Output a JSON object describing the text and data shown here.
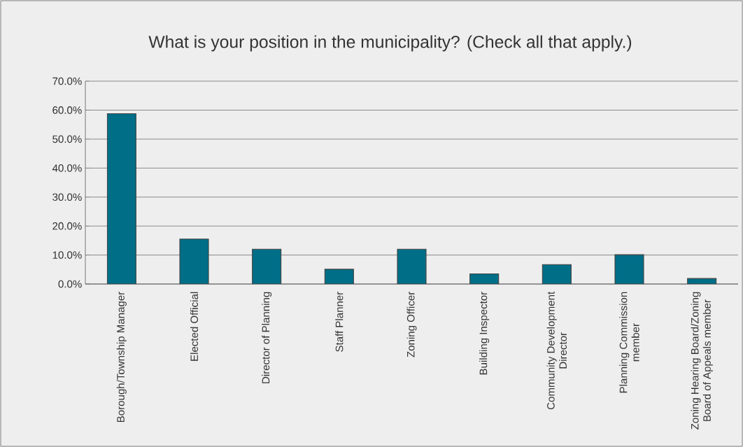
{
  "chart_data": {
    "type": "bar",
    "title": "What is your position in the municipality? (Check all that apply.)",
    "categories": [
      "Borough/Township Manager",
      "Elected Official",
      "Director of Planning",
      "Staff Planner",
      "Zoning Officer",
      "Building Inspector",
      "Community Development Director",
      "Planning Commission member",
      "Zoning Hearing Board/Zoning Board of Appeals member"
    ],
    "values": [
      58.8,
      15.5,
      12.0,
      5.1,
      12.0,
      3.5,
      6.7,
      10.1,
      1.9
    ],
    "color": "#006e87",
    "ylim": [
      0,
      70
    ],
    "yticks": [
      {
        "value": 0,
        "label": "0.0%"
      },
      {
        "value": 10,
        "label": "10.0%"
      },
      {
        "value": 20,
        "label": "20.0%"
      },
      {
        "value": 30,
        "label": "30.0%"
      },
      {
        "value": 40,
        "label": "40.0%"
      },
      {
        "value": 50,
        "label": "50.0%"
      },
      {
        "value": 60,
        "label": "60.0%"
      },
      {
        "value": 70,
        "label": "70.0%"
      }
    ],
    "grid": "y"
  }
}
